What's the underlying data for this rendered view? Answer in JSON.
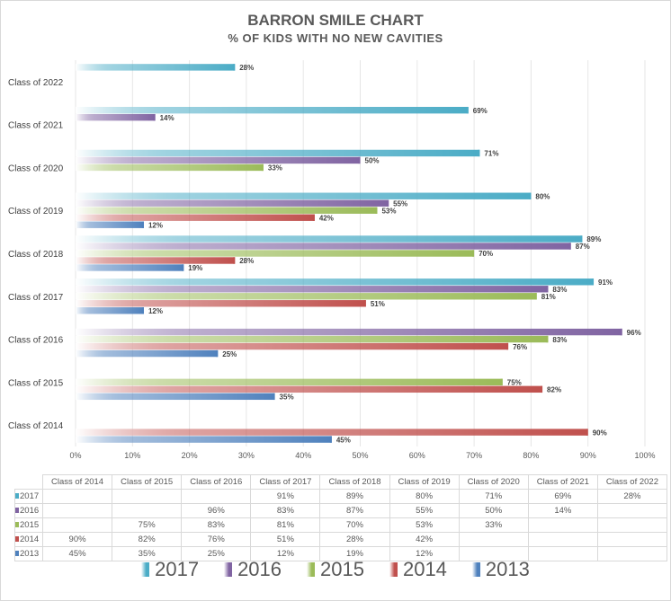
{
  "chart_data": {
    "type": "bar",
    "orientation": "horizontal",
    "title": "BARRON SMILE CHART",
    "subtitle": "% OF KIDS WITH NO NEW CAVITIES",
    "categories": [
      "Class of 2014",
      "Class of 2015",
      "Class of 2016",
      "Class of 2017",
      "Class of 2018",
      "Class of 2019",
      "Class of 2020",
      "Class of 2021",
      "Class of 2022"
    ],
    "series": [
      {
        "name": "2017",
        "color": "#4bacc6",
        "values": [
          null,
          null,
          null,
          91,
          89,
          80,
          71,
          69,
          28
        ]
      },
      {
        "name": "2016",
        "color": "#8064a2",
        "values": [
          null,
          null,
          96,
          83,
          87,
          55,
          50,
          14,
          null
        ]
      },
      {
        "name": "2015",
        "color": "#9bbb59",
        "values": [
          null,
          75,
          83,
          81,
          70,
          53,
          33,
          null,
          null
        ]
      },
      {
        "name": "2014",
        "color": "#c0504d",
        "values": [
          90,
          82,
          76,
          51,
          28,
          42,
          null,
          null,
          null
        ]
      },
      {
        "name": "2013",
        "color": "#4f81bd",
        "values": [
          45,
          35,
          25,
          12,
          19,
          12,
          null,
          null,
          null
        ]
      }
    ],
    "xlim": [
      0,
      100
    ],
    "xticks": [
      "0%",
      "10%",
      "20%",
      "30%",
      "40%",
      "50%",
      "60%",
      "70%",
      "80%",
      "90%",
      "100%"
    ],
    "grid": true,
    "legend": "bottom",
    "data_table": true
  }
}
